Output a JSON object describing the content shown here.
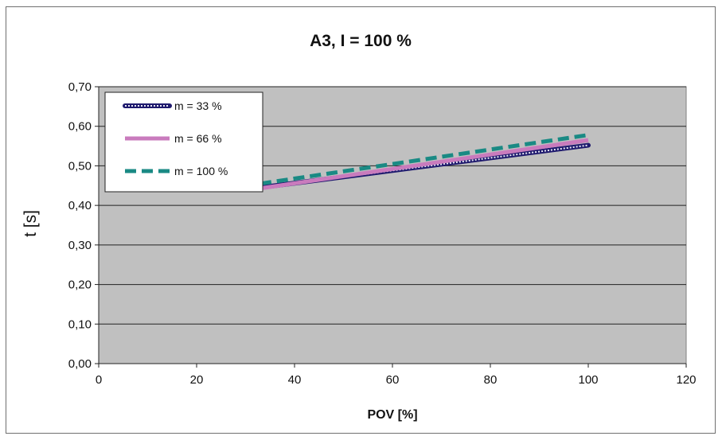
{
  "chart_data": {
    "type": "line",
    "title": "A3, I = 100 %",
    "xlabel": "POV [%]",
    "ylabel": "t [s]",
    "xlim": [
      0,
      120
    ],
    "ylim": [
      0,
      0.7
    ],
    "x_ticks": [
      "0",
      "20",
      "40",
      "60",
      "80",
      "100",
      "120"
    ],
    "y_ticks": [
      "0,00",
      "0,10",
      "0,20",
      "0,30",
      "0,40",
      "0,50",
      "0,60",
      "0,70"
    ],
    "grid": "horizontal",
    "legend_position": "top-left",
    "plot_background": "#c0c0c0",
    "series": [
      {
        "name": "m = 33 %",
        "color": "#1f1a6e",
        "style": "dotted-bold",
        "x": [
          33,
          100
        ],
        "y": [
          0.445,
          0.552
        ]
      },
      {
        "name": "m = 66 %",
        "color": "#c97bbd",
        "style": "solid",
        "x": [
          33,
          100
        ],
        "y": [
          0.443,
          0.565
        ]
      },
      {
        "name": "m = 100 %",
        "color": "#1a8a84",
        "style": "dashed",
        "x": [
          33,
          100
        ],
        "y": [
          0.455,
          0.578
        ]
      }
    ]
  }
}
